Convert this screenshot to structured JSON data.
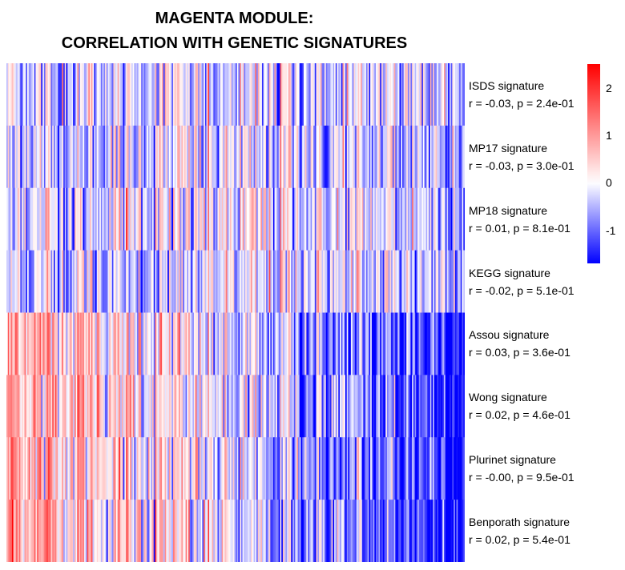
{
  "title": {
    "line1": "MAGENTA MODULE:",
    "line2": "CORRELATION WITH GENETIC SIGNATURES"
  },
  "chart_data": {
    "type": "heatmap",
    "colorscale": {
      "low": "#0000FF",
      "mid": "#FFFFFF",
      "high": "#FF0000",
      "min": -1.7,
      "max": 2.5
    },
    "colorbar_ticks": [
      {
        "value": 2,
        "label": "2"
      },
      {
        "value": 1,
        "label": "1"
      },
      {
        "value": 0,
        "label": "0"
      },
      {
        "value": -1,
        "label": "-1"
      }
    ],
    "rows": [
      {
        "name": "ISDS signature",
        "stat": "r = -0.03, p = 2.4e-01",
        "trend": 0.0,
        "bias": -0.25
      },
      {
        "name": "MP17 signature",
        "stat": "r = -0.03, p = 3.0e-01",
        "trend": 0.0,
        "bias": -0.3
      },
      {
        "name": "MP18 signature",
        "stat": "r = 0.01, p = 8.1e-01",
        "trend": 0.05,
        "bias": -0.15
      },
      {
        "name": "KEGG signature",
        "stat": "r = -0.02, p = 5.1e-01",
        "trend": 0.0,
        "bias": -0.3
      },
      {
        "name": "Assou signature",
        "stat": "r = 0.03, p = 3.6e-01",
        "trend": 1.0,
        "bias": 0.0
      },
      {
        "name": "Wong signature",
        "stat": "r = 0.02, p = 4.6e-01",
        "trend": 1.0,
        "bias": 0.1
      },
      {
        "name": "Plurinet signature",
        "stat": "r = -0.00, p = 9.5e-01",
        "trend": 1.0,
        "bias": 0.0
      },
      {
        "name": "Benporath signature",
        "stat": "r = 0.02, p = 5.4e-01",
        "trend": 1.0,
        "bias": 0.05
      }
    ],
    "n_columns": 330
  }
}
